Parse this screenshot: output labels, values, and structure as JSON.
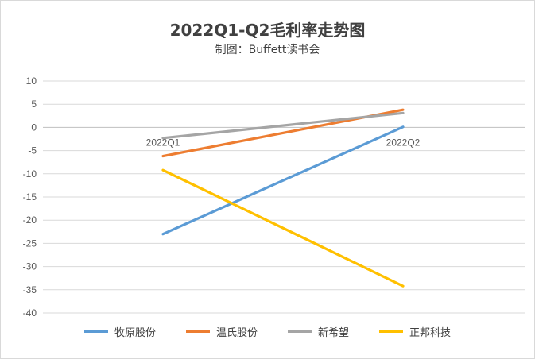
{
  "chart_data": {
    "type": "line",
    "title": "2022Q1-Q2毛利率走势图",
    "subtitle": "制图：Buffett读书会",
    "categories": [
      "2022Q1",
      "2022Q2"
    ],
    "yticks": [
      "10",
      "5",
      "0",
      "-5",
      "-10",
      "-15",
      "-20",
      "-25",
      "-30",
      "-35",
      "-40"
    ],
    "ylim": [
      -40,
      10
    ],
    "grid": true,
    "legend_position": "bottom",
    "series": [
      {
        "name": "牧原股份",
        "values": [
          -23,
          0.1
        ],
        "color": "#5b9bd5"
      },
      {
        "name": "温氏股份",
        "values": [
          -6.2,
          3.8
        ],
        "color": "#ed7d31"
      },
      {
        "name": "新希望",
        "values": [
          -2.3,
          3.1
        ],
        "color": "#a5a5a5"
      },
      {
        "name": "正邦科技",
        "values": [
          -9.2,
          -34.2
        ],
        "color": "#ffc000"
      }
    ]
  }
}
